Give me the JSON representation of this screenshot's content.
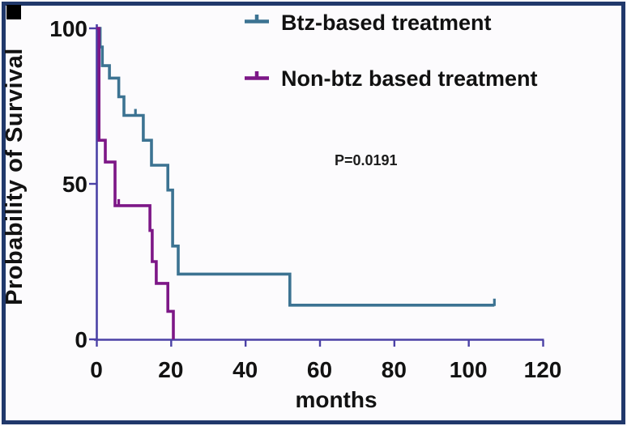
{
  "figure": {
    "background_color": "#fcfbfd",
    "border_color": "#20386b",
    "corner_marker_color": "#000000",
    "text_color": "#121212"
  },
  "chart_data": {
    "type": "line",
    "subtype": "kaplan_meier_step",
    "title": "",
    "xlabel": "months",
    "ylabel": "Probability of Survival",
    "xlim": [
      0,
      120
    ],
    "ylim": [
      0,
      100
    ],
    "x_ticks": [
      0,
      20,
      40,
      60,
      80,
      100,
      120
    ],
    "y_ticks": [
      100,
      50,
      0
    ],
    "grid": false,
    "legend_position": "top-right-inside",
    "axis_color": "#4b41a6",
    "p_value_label": "P=0.0191",
    "p_value_anchor": {
      "x_months": 64,
      "y_percent": 56
    },
    "series": [
      {
        "name": "Btz-based treatment",
        "color": "#3c7392",
        "points": [
          [
            0,
            100
          ],
          [
            1,
            100
          ],
          [
            1,
            94
          ],
          [
            1.6,
            94
          ],
          [
            1.6,
            88
          ],
          [
            3.5,
            88
          ],
          [
            3.5,
            84
          ],
          [
            6,
            84
          ],
          [
            6,
            78
          ],
          [
            7.4,
            78
          ],
          [
            7.4,
            72
          ],
          [
            12.6,
            72
          ],
          [
            12.6,
            64
          ],
          [
            14.8,
            64
          ],
          [
            14.8,
            56
          ],
          [
            19.2,
            56
          ],
          [
            19.2,
            48
          ],
          [
            20.5,
            48
          ],
          [
            20.5,
            30
          ],
          [
            22,
            30
          ],
          [
            22,
            21
          ],
          [
            52,
            21
          ],
          [
            52,
            11
          ],
          [
            107,
            11
          ]
        ],
        "censor_marks": [
          [
            10.5,
            72
          ],
          [
            107,
            11
          ]
        ]
      },
      {
        "name": "Non-btz based treatment",
        "color": "#7d1787",
        "points": [
          [
            0,
            100
          ],
          [
            0.7,
            100
          ],
          [
            0.7,
            64
          ],
          [
            2.4,
            64
          ],
          [
            2.4,
            57
          ],
          [
            5,
            57
          ],
          [
            5,
            43
          ],
          [
            14.4,
            43
          ],
          [
            14.4,
            35
          ],
          [
            15,
            35
          ],
          [
            15,
            25
          ],
          [
            16.1,
            25
          ],
          [
            16.1,
            18
          ],
          [
            19.2,
            18
          ],
          [
            19.2,
            9
          ],
          [
            20.7,
            9
          ],
          [
            20.7,
            0
          ]
        ],
        "censor_marks": [
          [
            6,
            43
          ]
        ]
      }
    ]
  }
}
